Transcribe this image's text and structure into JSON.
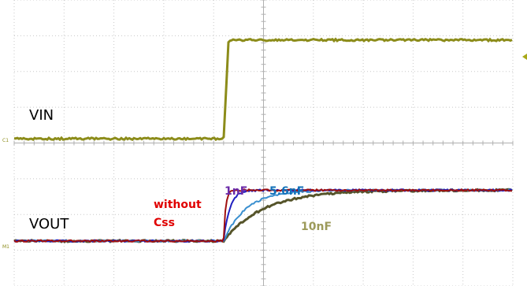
{
  "chart_data": {
    "type": "line",
    "grid": true,
    "grid_divisions": {
      "x": 10,
      "y": 8
    },
    "x_range": [
      0,
      10
    ],
    "y_range": [
      0,
      8
    ],
    "colors": {
      "vin": "#8c8c1a",
      "without_css": "#a01010",
      "nf1": "#2020c0",
      "nf5_6": "#3a8fcf",
      "nf10": "#55542a",
      "grid": "#c8c8c8",
      "text_red": "#e00000",
      "text_purple": "#6a2aa8",
      "text_blue": "#1070b8",
      "text_olive": "#9c9a5a"
    },
    "labels": {
      "vin": "VIN",
      "vout": "VOUT",
      "without": "without",
      "css": "Css",
      "nf1": "1nF",
      "nf5_6": "5.6nF",
      "nf10": "10nF",
      "ch1_marker": "C1",
      "math_marker": "M1"
    },
    "series": [
      {
        "key": "vin",
        "points": [
          [
            0,
            4.12
          ],
          [
            4.2,
            4.12
          ],
          [
            4.25,
            5.6
          ],
          [
            4.3,
            6.88
          ],
          [
            10,
            6.88
          ]
        ]
      },
      {
        "key": "without_css",
        "rise_start": 4.2,
        "tau": 0.04,
        "low": 1.26,
        "high": 2.68
      },
      {
        "key": "nf1",
        "rise_start": 4.2,
        "tau": 0.12,
        "low": 1.26,
        "high": 2.68
      },
      {
        "key": "nf5_6",
        "rise_start": 4.2,
        "tau": 0.45,
        "low": 1.26,
        "high": 2.68
      },
      {
        "key": "nf10",
        "rise_start": 4.2,
        "tau": 0.8,
        "low": 1.26,
        "high": 2.68
      }
    ]
  }
}
